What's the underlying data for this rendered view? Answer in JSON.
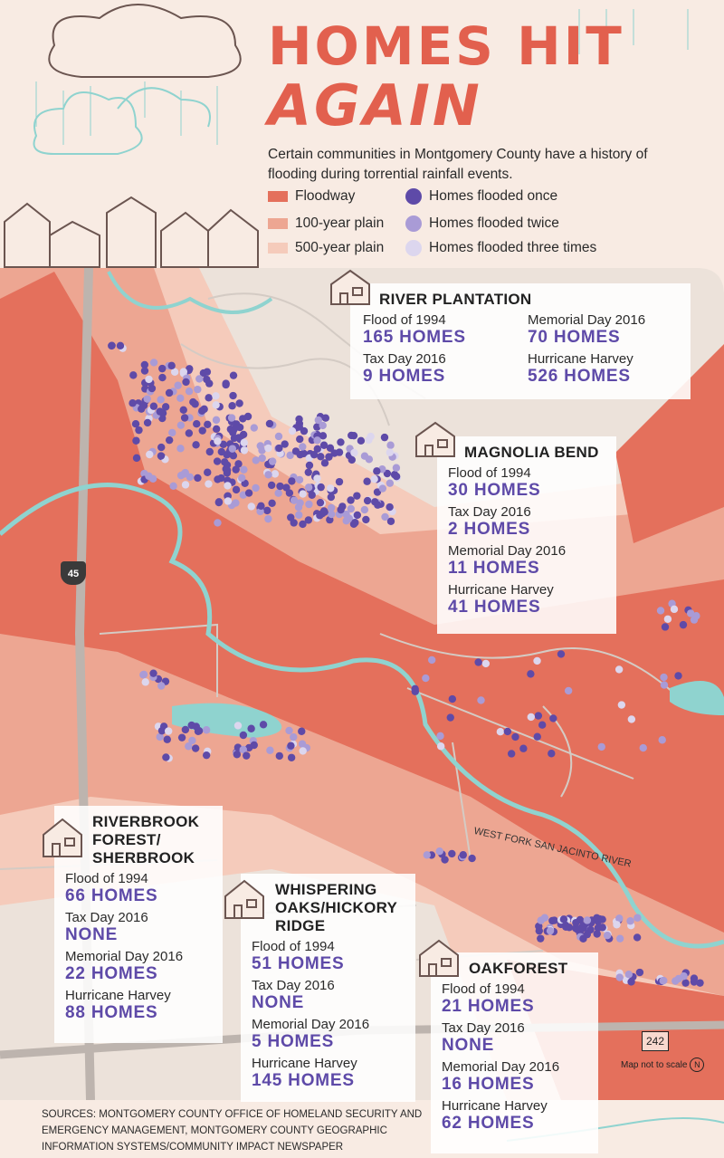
{
  "header": {
    "title_line1": "HOMES HIT",
    "title_line2": "AGAIN",
    "intro": "Certain communities in Montgomery County have a history of flooding during torrential rainfall events."
  },
  "legend": {
    "zones": [
      {
        "label": "Floodway",
        "color": "#e4705c"
      },
      {
        "label": "100-year plain",
        "color": "#eda692"
      },
      {
        "label": "500-year plain",
        "color": "#f5cbbb"
      }
    ],
    "homes": [
      {
        "label": "Homes flooded once",
        "color": "#5e4aa8"
      },
      {
        "label": "Homes flooded twice",
        "color": "#a99bd6"
      },
      {
        "label": "Homes flooded three times",
        "color": "#dcd6ee"
      }
    ]
  },
  "communities": [
    {
      "name": "RIVER PLANTATION",
      "events": [
        {
          "label": "Flood of 1994",
          "value": "165 HOMES"
        },
        {
          "label": "Tax Day 2016",
          "value": "9 HOMES"
        },
        {
          "label": "Memorial Day 2016",
          "value": "70 HOMES"
        },
        {
          "label": "Hurricane Harvey",
          "value": "526 HOMES"
        }
      ]
    },
    {
      "name": "MAGNOLIA BEND",
      "events": [
        {
          "label": "Flood of 1994",
          "value": "30 HOMES"
        },
        {
          "label": "Tax Day 2016",
          "value": "2 HOMES"
        },
        {
          "label": "Memorial Day 2016",
          "value": "11 HOMES"
        },
        {
          "label": "Hurricane Harvey",
          "value": "41 HOMES"
        }
      ]
    },
    {
      "name_line1": "RIVERBROOK",
      "name_line2": "FOREST/",
      "name_line3": "SHERBROOK",
      "events": [
        {
          "label": "Flood of 1994",
          "value": "66 HOMES"
        },
        {
          "label": "Tax Day 2016",
          "value": "NONE"
        },
        {
          "label": "Memorial Day 2016",
          "value": "22 HOMES"
        },
        {
          "label": "Hurricane Harvey",
          "value": "88 HOMES"
        }
      ]
    },
    {
      "name_line1": "WHISPERING",
      "name_line2": "OAKS/HICKORY",
      "name_line3": "RIDGE",
      "events": [
        {
          "label": "Flood of 1994",
          "value": "51 HOMES"
        },
        {
          "label": "Tax Day 2016",
          "value": "NONE"
        },
        {
          "label": "Memorial Day 2016",
          "value": "5 HOMES"
        },
        {
          "label": "Hurricane Harvey",
          "value": "145 HOMES"
        }
      ]
    },
    {
      "name": "OAKFOREST",
      "events": [
        {
          "label": "Flood of 1994",
          "value": "21 HOMES"
        },
        {
          "label": "Tax Day 2016",
          "value": "NONE"
        },
        {
          "label": "Memorial Day 2016",
          "value": "16 HOMES"
        },
        {
          "label": "Hurricane Harvey",
          "value": "62 HOMES"
        }
      ]
    }
  ],
  "map": {
    "highway_45": "45",
    "highway_242": "242",
    "river_label": "WEST FORK SAN JACINTO RIVER",
    "scale_note": "Map not to scale",
    "north": "N"
  },
  "sources": "Sources: Montgomery County Office of Homeland Security and Emergency Management, Montgomery County Geographic Information Systems/Community Impact Newspaper"
}
